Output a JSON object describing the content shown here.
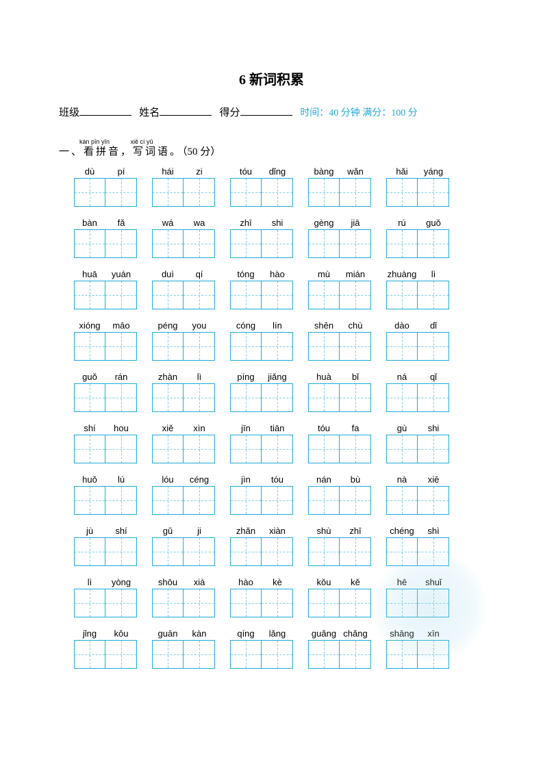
{
  "title": "6 新词积累",
  "info": {
    "class_label": "班级",
    "name_label": "姓名",
    "score_label": "得分",
    "timing": "时间：40 分钟 满分：100 分"
  },
  "section": {
    "ruby": [
      "kàn pīn yīn",
      "xiě cí yǔ"
    ],
    "number": "一、",
    "text_parts": [
      "看拼音，",
      "写词语。"
    ],
    "points": "（50 分）"
  },
  "colors": {
    "box_border": "#1fa9d8",
    "box_dash": "#7dcde4",
    "timing_text": "#1fa9d8"
  },
  "rows": [
    [
      [
        "dù",
        "pí"
      ],
      [
        "hái",
        "zi"
      ],
      [
        "tóu",
        "dǐng"
      ],
      [
        "bàng",
        "wǎn"
      ],
      [
        "hǎi",
        "yáng"
      ]
    ],
    [
      [
        "bàn",
        "fǎ"
      ],
      [
        "wá",
        "wa"
      ],
      [
        "zhī",
        "shi"
      ],
      [
        "gèng",
        "jiā"
      ],
      [
        "rú",
        "guǒ"
      ]
    ],
    [
      [
        "huā",
        "yuán"
      ],
      [
        "duì",
        "qí"
      ],
      [
        "tóng",
        "hào"
      ],
      [
        "mù",
        "mián"
      ],
      [
        "zhuàng",
        "lì"
      ]
    ],
    [
      [
        "xióng",
        "māo"
      ],
      [
        "péng",
        "you"
      ],
      [
        "cóng",
        "lín"
      ],
      [
        "shēn",
        "chù"
      ],
      [
        "dào",
        "dǐ"
      ]
    ],
    [
      [
        "guǒ",
        "rán"
      ],
      [
        "zhàn",
        "lì"
      ],
      [
        "píng",
        "jiǎng"
      ],
      [
        "huà",
        "bǐ"
      ],
      [
        "ná",
        "qǐ"
      ]
    ],
    [
      [
        "shí",
        "hou"
      ],
      [
        "xiě",
        "xìn"
      ],
      [
        "jīn",
        "tiān"
      ],
      [
        "tóu",
        "fa"
      ],
      [
        "gù",
        "shi"
      ]
    ],
    [
      [
        "huǒ",
        "lú"
      ],
      [
        "lóu",
        "céng"
      ],
      [
        "jìn",
        "tóu"
      ],
      [
        "nán",
        "bù"
      ],
      [
        "nà",
        "xiē"
      ]
    ],
    [
      [
        "jù",
        "shí"
      ],
      [
        "gǔ",
        "ji"
      ],
      [
        "zhǎn",
        "xiàn"
      ],
      [
        "shù",
        "zhī"
      ],
      [
        "chéng",
        "shì"
      ]
    ],
    [
      [
        "lì",
        "yòng"
      ],
      [
        "shōu",
        "xià"
      ],
      [
        "hào",
        "kè"
      ],
      [
        "kǒu",
        "kě"
      ],
      [
        "hē",
        "shuǐ"
      ]
    ],
    [
      [
        "jǐng",
        "kǒu"
      ],
      [
        "guān",
        "kàn"
      ],
      [
        "qíng",
        "lǎng"
      ],
      [
        "guǎng",
        "chǎng"
      ],
      [
        "shāng",
        "xīn"
      ]
    ]
  ]
}
